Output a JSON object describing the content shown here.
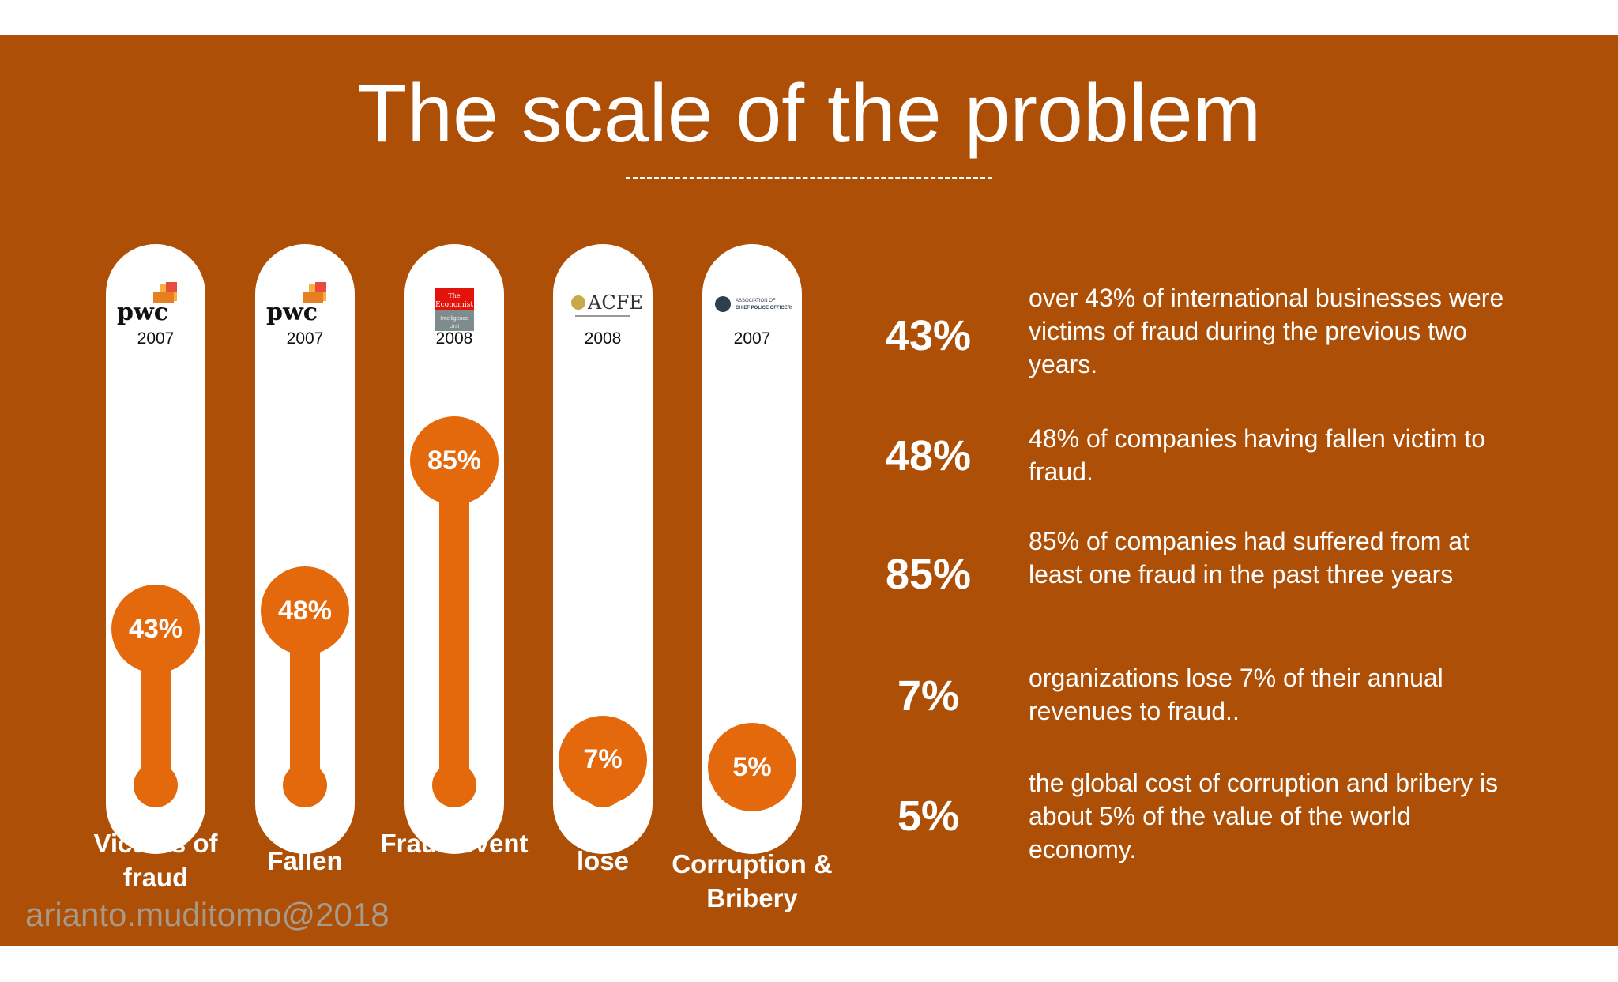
{
  "slide": {
    "title": "The scale of the problem",
    "credit": "arianto.muditomo@2018",
    "colors": {
      "background": "#ad4f07",
      "accent": "#e4690c",
      "tube": "#ffffff",
      "text": "#ffffff"
    }
  },
  "chart_data": {
    "type": "bar",
    "title": "",
    "categories": [
      "Victims of fraud",
      "Fallen",
      "Fraud event",
      "lose",
      "Corruption & Bribery"
    ],
    "values": [
      43,
      48,
      85,
      7,
      5
    ],
    "value_labels": [
      "43%",
      "48%",
      "85%",
      "7%",
      "5%"
    ],
    "years": [
      "2007",
      "2007",
      "2008",
      "2008",
      "2007"
    ],
    "sources": [
      "pwc",
      "pwc",
      "The Economist Intelligence Unit",
      "ACFE",
      "Association of Chief Police Officers"
    ],
    "ylim": [
      0,
      100
    ],
    "xlabel": "",
    "ylabel": ""
  },
  "facts": [
    {
      "value": "43%",
      "text": "over 43% of international businesses were victims of fraud during the previous two years."
    },
    {
      "value": "48%",
      "text": "48% of companies having fallen victim to fraud."
    },
    {
      "value": "85%",
      "text": "85% of companies had suffered from at least one fraud in the past three years"
    },
    {
      "value": "7%",
      "text": "organizations lose 7% of their annual revenues to fraud.."
    },
    {
      "value": "5%",
      "text": "the global cost of corruption and bribery is about 5% of the value of the world economy."
    }
  ]
}
